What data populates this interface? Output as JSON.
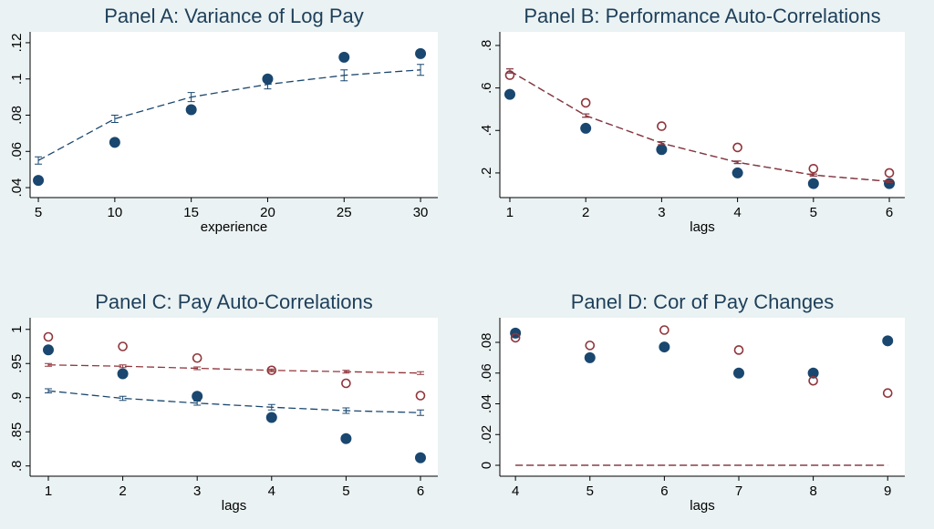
{
  "chart_data": [
    {
      "type": "scatter",
      "title": "Panel A: Variance of Log Pay",
      "x_label": "experience",
      "x": [
        5,
        10,
        15,
        20,
        25,
        30
      ],
      "xlim": [
        4.46,
        31.13
      ],
      "xticks": [
        5,
        10,
        15,
        20,
        25,
        30
      ],
      "ylim": [
        0.0345,
        0.126
      ],
      "yticks": [
        {
          "value": 0.04,
          "label": ".04"
        },
        {
          "value": 0.06,
          "label": ".06"
        },
        {
          "value": 0.08,
          "label": ".08"
        },
        {
          "value": 0.1,
          "label": ".1"
        },
        {
          "value": 0.12,
          "label": ".12"
        }
      ],
      "series": [
        {
          "marker": "filled",
          "color": "#1a476f",
          "values": [
            0.044,
            0.065,
            0.083,
            0.1,
            0.112,
            0.114
          ]
        },
        {
          "marker": "dashed",
          "color": "#1a476f",
          "values": [
            0.055,
            0.078,
            0.09,
            0.097,
            0.102,
            0.105
          ],
          "errors": [
            0.002,
            0.002,
            0.0025,
            0.0025,
            0.003,
            0.003
          ]
        }
      ]
    },
    {
      "type": "scatter",
      "title": "Panel B: Performance Auto-Correlations",
      "x_label": "lags",
      "x": [
        1,
        2,
        3,
        4,
        5,
        6
      ],
      "xlim": [
        0.868,
        6.204
      ],
      "xticks": [
        1,
        2,
        3,
        4,
        5,
        6
      ],
      "ylim": [
        0.084,
        0.864
      ],
      "yticks": [
        {
          "value": 0.2,
          "label": ".2"
        },
        {
          "value": 0.4,
          "label": ".4"
        },
        {
          "value": 0.6,
          "label": ".6"
        },
        {
          "value": 0.8,
          "label": ".8"
        }
      ],
      "series": [
        {
          "marker": "filled",
          "color": "#1a476f",
          "values": [
            0.57,
            0.41,
            0.31,
            0.2,
            0.15,
            0.15
          ]
        },
        {
          "marker": "hollow",
          "color": "#90353b",
          "values": [
            0.66,
            0.53,
            0.42,
            0.32,
            0.22,
            0.2
          ]
        },
        {
          "marker": "dashed",
          "color": "#1a476f",
          "values": [
            0.68,
            0.47,
            0.34,
            0.25,
            0.19,
            0.16
          ],
          "errors": [
            0.01,
            0.008,
            0.007,
            0.006,
            0.005,
            0.005
          ]
        },
        {
          "marker": "dashed",
          "color": "#90353b",
          "values": [
            0.68,
            0.47,
            0.34,
            0.25,
            0.19,
            0.16
          ],
          "errors": [
            0.01,
            0.008,
            0.007,
            0.006,
            0.005,
            0.005
          ]
        }
      ]
    },
    {
      "type": "scatter",
      "title": "Panel C: Pay Auto-Correlations",
      "x_label": "lags",
      "x": [
        1,
        2,
        3,
        4,
        5,
        6
      ],
      "xlim": [
        0.755,
        6.233
      ],
      "xticks": [
        1,
        2,
        3,
        4,
        5,
        6
      ],
      "ylim": [
        0.785,
        1.017
      ],
      "yticks": [
        {
          "value": 0.8,
          "label": ".8"
        },
        {
          "value": 0.85,
          "label": ".85"
        },
        {
          "value": 0.9,
          "label": ".9"
        },
        {
          "value": 0.95,
          "label": ".95"
        },
        1
      ],
      "series": [
        {
          "marker": "filled",
          "color": "#1a476f",
          "values": [
            0.97,
            0.935,
            0.902,
            0.871,
            0.84,
            0.812
          ]
        },
        {
          "marker": "hollow",
          "color": "#90353b",
          "values": [
            0.989,
            0.975,
            0.958,
            0.94,
            0.921,
            0.903
          ]
        },
        {
          "marker": "dashed",
          "color": "#90353b",
          "values": [
            0.948,
            0.946,
            0.943,
            0.94,
            0.938,
            0.936
          ],
          "errors": [
            0.002,
            0.002,
            0.002,
            0.002,
            0.002,
            0.002
          ]
        },
        {
          "marker": "dashed",
          "color": "#1a476f",
          "values": [
            0.91,
            0.899,
            0.892,
            0.886,
            0.881,
            0.878
          ],
          "errors": [
            0.003,
            0.003,
            0.003,
            0.004,
            0.004,
            0.004
          ]
        }
      ]
    },
    {
      "type": "scatter",
      "title": "Panel D: Cor of Pay Changes",
      "x_label": "lags",
      "x": [
        4,
        5,
        6,
        7,
        8,
        9
      ],
      "xlim": [
        3.79,
        9.23
      ],
      "xticks": [
        4,
        5,
        6,
        7,
        8,
        9
      ],
      "ylim": [
        -0.0071,
        0.096
      ],
      "yticks": [
        0,
        {
          "value": 0.02,
          "label": ".02"
        },
        {
          "value": 0.04,
          "label": ".04"
        },
        {
          "value": 0.06,
          "label": ".06"
        },
        {
          "value": 0.08,
          "label": ".08"
        }
      ],
      "series": [
        {
          "marker": "filled",
          "color": "#1a476f",
          "values": [
            0.086,
            0.07,
            0.077,
            0.06,
            0.06,
            0.081
          ]
        },
        {
          "marker": "hollow",
          "color": "#90353b",
          "values": [
            0.083,
            0.078,
            0.088,
            0.075,
            0.055,
            0.047
          ]
        },
        {
          "marker": "dashed",
          "color": "#1a476f",
          "values": [
            0,
            0,
            0,
            0,
            0,
            0
          ]
        },
        {
          "marker": "dashed",
          "color": "#90353b",
          "values": [
            0,
            0,
            0,
            0,
            0,
            0
          ]
        }
      ]
    }
  ]
}
